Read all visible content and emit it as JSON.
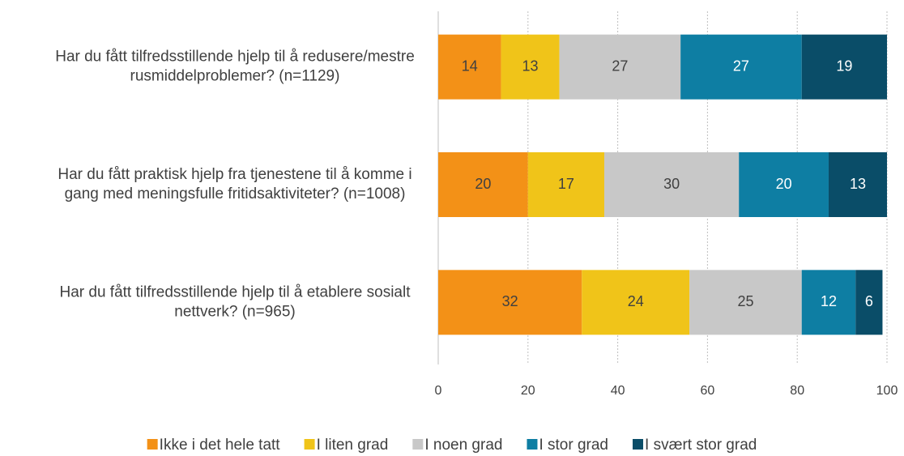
{
  "chart_data": {
    "type": "stacked_bar",
    "orientation": "horizontal",
    "categories": [
      "Har du fått tilfredsstillende hjelp til å redusere/mestre rusmiddelproblemer? (n=1129)",
      "Har du fått praktisk hjelp fra tjenestene til å komme i gang med meningsfulle fritidsaktiviteter? (n=1008)",
      "Har du fått tilfredsstillende hjelp til å etablere sosialt nettverk? (n=965)"
    ],
    "series": [
      {
        "name": "Ikke i det hele tatt",
        "color": "#f39117",
        "values": [
          14,
          20,
          32
        ]
      },
      {
        "name": "I liten grad",
        "color": "#f0c419",
        "values": [
          13,
          17,
          24
        ]
      },
      {
        "name": "I noen grad",
        "color": "#c8c8c8",
        "values": [
          27,
          30,
          25
        ]
      },
      {
        "name": "I stor grad",
        "color": "#0e7ea3",
        "values": [
          27,
          20,
          12
        ]
      },
      {
        "name": "I svært stor grad",
        "color": "#0a4d68",
        "values": [
          19,
          13,
          6
        ]
      }
    ],
    "xlim": [
      0,
      100
    ],
    "xticks": [
      0,
      20,
      40,
      60,
      80,
      100
    ],
    "grid": true,
    "legend": "bottom"
  }
}
